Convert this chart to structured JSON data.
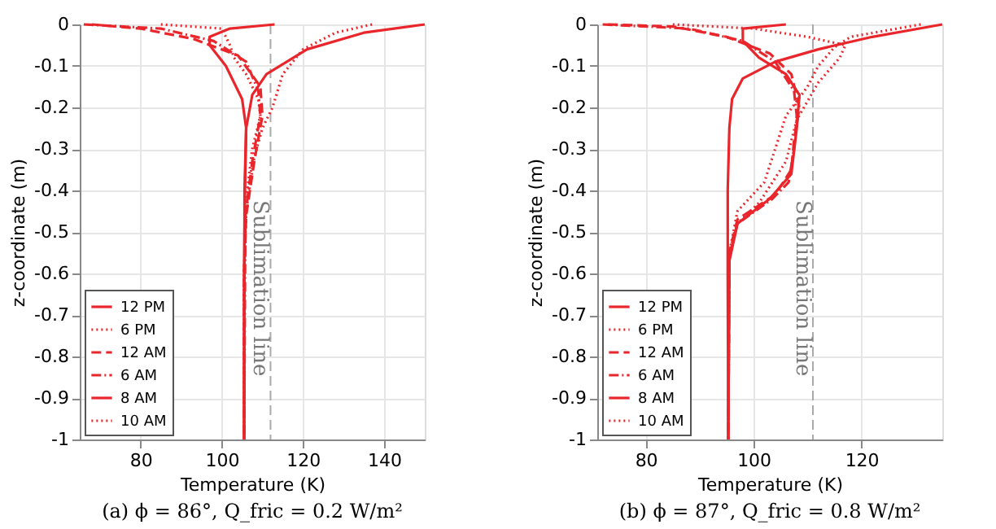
{
  "chart_data": [
    {
      "type": "line",
      "title": "(a) ϕ = 86°, Q_fric = 0.2 W/m²",
      "xlabel": "Temperature (K)",
      "ylabel": "z-coordinate (m)",
      "xlim": [
        65,
        150
      ],
      "xticks": [
        80,
        100,
        120,
        140
      ],
      "ylim": [
        -1,
        0
      ],
      "yticks": [
        0,
        -0.1,
        -0.2,
        -0.3,
        -0.4,
        -0.5,
        -0.6,
        -0.7,
        -0.8,
        -0.9,
        -1
      ],
      "grid": true,
      "legend": "bottom left",
      "ref_lines": [
        {
          "axis": "x",
          "value": 112,
          "label": "Sublimation line",
          "color": "#aaaaaa",
          "line_style": "dashed"
        }
      ],
      "series": [
        {
          "name": "12 PM",
          "color": "#e8262b",
          "line_style": "solid",
          "x": [
            150,
            135,
            121,
            111,
            107.5,
            106,
            105.7,
            105.5,
            105.5
          ],
          "values": [
            0,
            -0.02,
            -0.06,
            -0.12,
            -0.17,
            -0.25,
            -0.4,
            -0.6,
            -1
          ]
        },
        {
          "name": "6 PM",
          "color": "#e8262b",
          "line_style": "dotted",
          "x": [
            137,
            128,
            120,
            115,
            112.5,
            110,
            108,
            106,
            105.5,
            105.5
          ],
          "values": [
            0,
            -0.02,
            -0.06,
            -0.12,
            -0.2,
            -0.25,
            -0.32,
            -0.45,
            -0.6,
            -1
          ]
        },
        {
          "name": "12 AM",
          "color": "#e8262b",
          "line_style": "dashed",
          "x": [
            68,
            80,
            93,
            104,
            109.5,
            110,
            108,
            106,
            105.5,
            105.5
          ],
          "values": [
            0,
            -0.01,
            -0.035,
            -0.075,
            -0.15,
            -0.22,
            -0.33,
            -0.46,
            -0.6,
            -1
          ]
        },
        {
          "name": "6 AM",
          "color": "#e8262b",
          "line_style": "dashdot",
          "x": [
            66,
            85,
            98,
            106,
            109,
            109.5,
            107.5,
            105.8,
            105.5
          ],
          "values": [
            0,
            -0.01,
            -0.04,
            -0.09,
            -0.16,
            -0.22,
            -0.33,
            -0.46,
            -1
          ]
        },
        {
          "name": "8 AM",
          "color": "#e8262b",
          "line_style": "solid",
          "x": [
            113,
            102,
            97,
            97,
            101,
            105,
            106,
            105.6,
            105.5
          ],
          "values": [
            0,
            -0.01,
            -0.03,
            -0.05,
            -0.1,
            -0.18,
            -0.25,
            -0.4,
            -1
          ]
        },
        {
          "name": "10 AM",
          "color": "#e8262b",
          "line_style": "dotted",
          "x": [
            85,
            100,
            102,
            103,
            106,
            109,
            109.5,
            107.5,
            106,
            105.5,
            105.5
          ],
          "values": [
            0,
            -0.01,
            -0.05,
            -0.08,
            -0.12,
            -0.18,
            -0.22,
            -0.3,
            -0.42,
            -0.6,
            -1
          ]
        }
      ]
    },
    {
      "type": "line",
      "title": "(b) ϕ = 87°, Q_fric = 0.8 W/m²",
      "xlabel": "Temperature (K)",
      "ylabel": "z-coordinate (m)",
      "xlim": [
        71,
        135
      ],
      "xticks": [
        80,
        100,
        120
      ],
      "ylim": [
        -1,
        0
      ],
      "yticks": [
        0,
        -0.1,
        -0.2,
        -0.3,
        -0.4,
        -0.5,
        -0.6,
        -0.7,
        -0.8,
        -0.9,
        -1
      ],
      "grid": true,
      "legend": "bottom left",
      "ref_lines": [
        {
          "axis": "x",
          "value": 111,
          "label": "Sublimation line",
          "color": "#aaaaaa",
          "line_style": "dashed"
        }
      ],
      "series": [
        {
          "name": "12 PM",
          "color": "#e8262b",
          "line_style": "solid",
          "x": [
            135,
            122,
            112,
            104,
            98,
            96,
            95.5,
            95.2,
            95.2,
            95.3
          ],
          "values": [
            0,
            -0.03,
            -0.06,
            -0.09,
            -0.13,
            -0.18,
            -0.25,
            -0.4,
            -0.6,
            -1
          ]
        },
        {
          "name": "6 PM",
          "color": "#e8262b",
          "line_style": "dotted",
          "x": [
            131,
            118,
            115,
            112,
            110,
            106,
            104,
            102,
            97,
            95.5,
            95.3
          ],
          "values": [
            0,
            -0.03,
            -0.055,
            -0.1,
            -0.15,
            -0.22,
            -0.3,
            -0.38,
            -0.45,
            -0.55,
            -1
          ]
        },
        {
          "name": "12 AM",
          "color": "#e8262b",
          "line_style": "dashed",
          "x": [
            73,
            85,
            95,
            103,
            107,
            108.5,
            107.5,
            107,
            104,
            97,
            95.5,
            95.3
          ],
          "values": [
            0,
            -0.005,
            -0.03,
            -0.07,
            -0.12,
            -0.2,
            -0.28,
            -0.35,
            -0.41,
            -0.47,
            -0.55,
            -1
          ]
        },
        {
          "name": "6 AM",
          "color": "#e8262b",
          "line_style": "dashdot",
          "x": [
            72,
            88,
            98,
            104,
            107.5,
            108,
            107.5,
            106.5,
            103.5,
            97,
            95.5,
            95.3
          ],
          "values": [
            0,
            -0.01,
            -0.04,
            -0.09,
            -0.16,
            -0.22,
            -0.3,
            -0.38,
            -0.42,
            -0.48,
            -0.56,
            -1
          ]
        },
        {
          "name": "8 AM",
          "color": "#e8262b",
          "line_style": "solid",
          "x": [
            106,
            98,
            98,
            101,
            106,
            108.5,
            108,
            107,
            103,
            97,
            95.5,
            95.3
          ],
          "values": [
            0,
            -0.01,
            -0.04,
            -0.08,
            -0.12,
            -0.17,
            -0.25,
            -0.36,
            -0.42,
            -0.48,
            -0.57,
            -1
          ]
        },
        {
          "name": "10 AM",
          "color": "#e8262b",
          "line_style": "dotted",
          "x": [
            85,
            100,
            110,
            117,
            116,
            112,
            108,
            106,
            101,
            97,
            95.5,
            95.3
          ],
          "values": [
            0,
            -0.01,
            -0.03,
            -0.05,
            -0.08,
            -0.14,
            -0.23,
            -0.33,
            -0.43,
            -0.48,
            -0.55,
            -1
          ]
        }
      ]
    }
  ]
}
